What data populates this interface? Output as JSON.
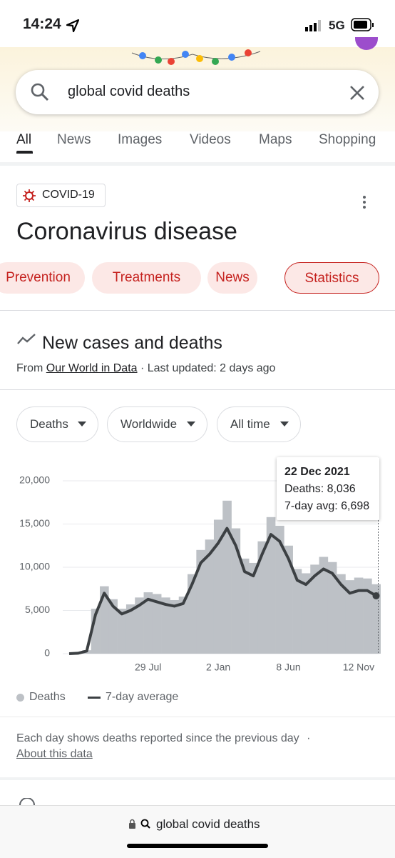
{
  "status_bar": {
    "time": "14:24",
    "network": "5G"
  },
  "search": {
    "query": "global covid deaths"
  },
  "tabs": [
    "All",
    "News",
    "Images",
    "Videos",
    "Maps",
    "Shopping"
  ],
  "panel": {
    "chip": "COVID-19",
    "title": "Coronavirus disease",
    "pills": [
      "Prevention",
      "Treatments",
      "News",
      "Statistics"
    ]
  },
  "section": {
    "title": "New cases and deaths",
    "source_prefix": "From",
    "source_link": "Our World in Data",
    "updated": "· Last updated: 2 days ago",
    "filters": [
      "Deaths",
      "Worldwide",
      "All time"
    ]
  },
  "chart_data": {
    "type": "bar",
    "categories": [
      null,
      null,
      null,
      null,
      null,
      null,
      null,
      null,
      null,
      "29 Jul",
      null,
      null,
      null,
      null,
      null,
      null,
      null,
      "2 Jan",
      null,
      null,
      null,
      null,
      null,
      null,
      null,
      "8 Jun",
      null,
      null,
      null,
      null,
      null,
      null,
      null,
      "12 Nov",
      null,
      null
    ],
    "series": [
      {
        "name": "Deaths",
        "type": "bar",
        "color": "#bdc1c6",
        "values": [
          0,
          80,
          400,
          5200,
          7800,
          6300,
          5200,
          5700,
          6500,
          7100,
          6900,
          6500,
          6200,
          6600,
          9200,
          12000,
          13200,
          15500,
          17700,
          14500,
          11000,
          10500,
          13000,
          15800,
          14800,
          12500,
          9800,
          9300,
          10300,
          11200,
          10600,
          9200,
          8500,
          8800,
          8700,
          8036
        ]
      },
      {
        "name": "7-day average",
        "type": "line",
        "color": "#3c4043",
        "values": [
          0,
          50,
          300,
          4500,
          7000,
          5500,
          4600,
          5000,
          5600,
          6300,
          6000,
          5700,
          5500,
          5800,
          8000,
          10500,
          11500,
          12800,
          14500,
          12500,
          9500,
          9000,
          11500,
          13800,
          13000,
          11000,
          8500,
          8000,
          9000,
          9800,
          9300,
          8000,
          7000,
          7300,
          7300,
          6698
        ]
      }
    ],
    "ylim": [
      0,
      20000
    ],
    "yticks": [
      0,
      {
        "value": 5000,
        "label": "5,000"
      },
      {
        "value": 10000,
        "label": "10,000"
      },
      {
        "value": 15000,
        "label": "15,000"
      },
      {
        "value": 20000,
        "label": "20,000"
      }
    ],
    "grid": true,
    "tooltip": {
      "title": "22 Dec 2021",
      "lines": [
        "Deaths: 8,036",
        "7-day avg: 6,698"
      ]
    }
  },
  "footer": {
    "note": "Each day shows deaths reported since the previous day",
    "separator": "·",
    "link": "About this data"
  },
  "bottom_bar": {
    "url": "global covid deaths"
  }
}
